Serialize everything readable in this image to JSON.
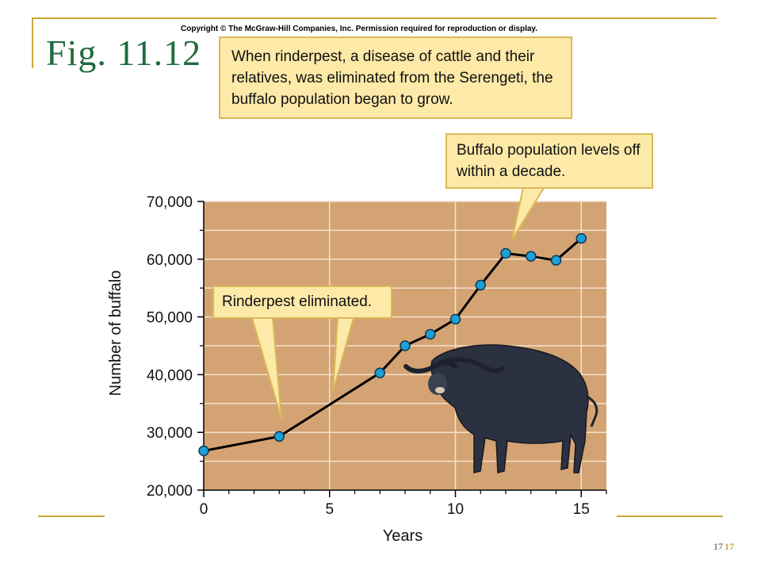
{
  "slide": {
    "title": "Fig. 11.12",
    "copyright": "Copyright © The McGraw-Hill Companies, Inc. Permission required for reproduction or display.",
    "page_number_a": "17",
    "page_number_b": "17"
  },
  "callouts": {
    "top": "When rinderpest, a disease of cattle and their relatives, was eliminated from the Serengeti, the buffalo population began to grow.",
    "right": "Buffalo population levels off within a decade.",
    "left": "Rinderpest eliminated."
  },
  "illustration": {
    "icon": "buffalo-icon"
  },
  "colors": {
    "plot_bg": "#d4a373",
    "grid": "#f3e2cc",
    "point": "#1e9fd6",
    "line": "#000000",
    "title": "#1f6b3f",
    "callout_bg": "#fde9a8",
    "accent": "#c8a83c"
  },
  "chart_data": {
    "type": "line",
    "xlabel": "Years",
    "ylabel": "Number of buffalo",
    "xlim": [
      0,
      16
    ],
    "ylim": [
      20000,
      70000
    ],
    "x_ticks": [
      0,
      5,
      10,
      15
    ],
    "x_tick_labels": [
      "0",
      "5",
      "10",
      "15"
    ],
    "y_ticks": [
      20000,
      30000,
      40000,
      50000,
      60000,
      70000
    ],
    "y_tick_labels": [
      "20,000",
      "30,000",
      "40,000",
      "50,000",
      "60,000",
      "70,000"
    ],
    "grid": true,
    "series": [
      {
        "x": [
          0,
          3,
          7,
          8,
          9,
          10,
          11,
          12,
          13,
          14,
          15
        ],
        "y": [
          26800,
          29300,
          40300,
          45000,
          47000,
          49600,
          55500,
          61000,
          60500,
          59800,
          63600
        ]
      }
    ]
  }
}
